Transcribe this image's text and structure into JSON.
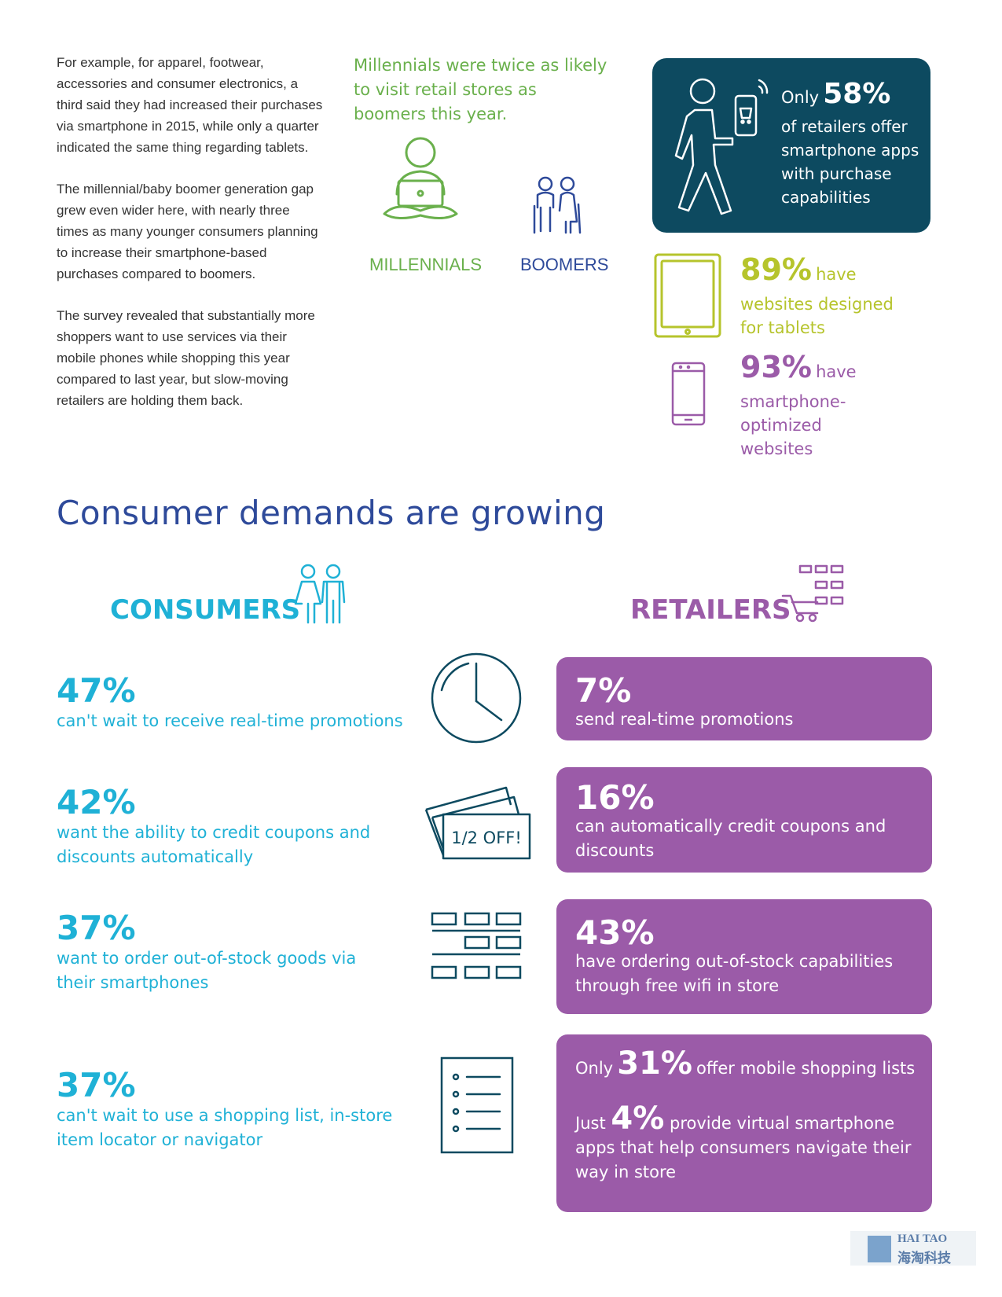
{
  "intro": {
    "p1": "For example, for apparel, footwear, accessories and consumer electronics, a third said they had increased their purchases via smartphone in 2015, while only a quarter indicated the same thing regarding tablets.",
    "p2": "The millennial/baby boomer generation gap grew even wider here, with nearly three times as many younger consumers planning to increase their smartphone-based purchases compared to boomers.",
    "p3": "The survey revealed that substantially more shoppers want to use services via their mobile phones while shopping this year compared to last year, but slow-moving retailers are holding them back."
  },
  "millennials": {
    "headline": "Millennials were twice as likely to visit retail stores as boomers this year.",
    "label_millennials": "MILLENNIALS",
    "label_boomers": "BOOMERS"
  },
  "retail_stats": {
    "apps_prefix": "Only",
    "apps_value": "58%",
    "apps_text": "of retailers offer smartphone apps with purchase capabilities",
    "tablet_value": "89%",
    "tablet_have": "have",
    "tablet_text": "websites designed for tablets",
    "phone_value": "93%",
    "phone_have": "have",
    "phone_text": "smartphone-optimized websites"
  },
  "section": {
    "title": "Consumer demands are growing",
    "consumers_label": "CONSUMERS",
    "retailers_label": "RETAILERS"
  },
  "rows": [
    {
      "c_value": "47%",
      "c_text": "can't wait to receive real-time promotions",
      "r_value": "7%",
      "r_text": "send real-time promotions"
    },
    {
      "c_value": "42%",
      "c_text": "want the ability to credit coupons and discounts automatically",
      "r_value": "16%",
      "r_text": "can automatically credit coupons and discounts",
      "coupon_label": "1/2 OFF!"
    },
    {
      "c_value": "37%",
      "c_text": "want to order out-of-stock goods via their smartphones",
      "r_value": "43%",
      "r_text": "have ordering out-of-stock capabilities through free wifi in store"
    },
    {
      "c_value": "37%",
      "c_text": "can't wait to use a shopping list, in-store item locator or navigator",
      "r_line1_prefix": "Only",
      "r_line1_value": "31%",
      "r_line1_text": "offer mobile shopping lists",
      "r_line2_prefix": "Just",
      "r_line2_value": "4%",
      "r_line2_text": "provide virtual smartphone apps that help consumers navigate their way in store"
    }
  ],
  "watermark": {
    "en": "HAI TAO",
    "cn": "海淘科技"
  },
  "colors": {
    "navy": "#0d4a60",
    "purple": "#9b5ba8",
    "cyan": "#1fb1d6",
    "green": "#6ab04c",
    "lime": "#b6c42c",
    "title_blue": "#2e4a9a"
  }
}
